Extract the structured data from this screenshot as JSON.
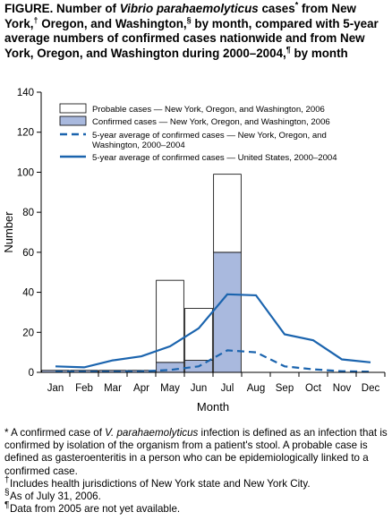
{
  "title": {
    "t1": "FIGURE. Number of ",
    "t2": "Vibrio parahaemolyticus",
    "t3": " cases",
    "m1": "*",
    "t4": " from New York,",
    "m2": "†",
    "t5": " Oregon, and Washington,",
    "m3": "§",
    "t6": " by month, compared with 5-year average numbers of confirmed cases nationwide and from New York, Oregon, and Washington during 2000–2004,",
    "m4": "¶",
    "t7": " by month"
  },
  "chart_data": {
    "type": "bar",
    "categories": [
      "Jan",
      "Feb",
      "Mar",
      "Apr",
      "May",
      "Jun",
      "Jul",
      "Aug",
      "Sep",
      "Oct",
      "Nov",
      "Dec"
    ],
    "xlabel": "Month",
    "ylabel": "Number",
    "ylim": [
      0,
      140
    ],
    "yticks": [
      "0",
      "20",
      "40",
      "60",
      "80",
      "100",
      "120",
      "140"
    ],
    "legend_position": "top",
    "grid": false,
    "colors": {
      "confirmed_fill": "#a9b9de",
      "probable_fill": "#ffffff",
      "line": "#1b64ae",
      "axis": "#000000"
    },
    "series": [
      {
        "name": "Probable cases — New York, Oregon, and Washington, 2006",
        "kind": "bar-stacked",
        "values": [
          0,
          0,
          0,
          0,
          41,
          26,
          39,
          0,
          0,
          0,
          0,
          0
        ]
      },
      {
        "name": "Confirmed cases — New York, Oregon, and Washington, 2006",
        "kind": "bar-stacked",
        "values": [
          1,
          1,
          1,
          1,
          5,
          6,
          60,
          0,
          0,
          0,
          0,
          0
        ]
      },
      {
        "name": "5-year average of confirmed cases — New York, Oregon, and Washington, 2000–2004",
        "kind": "line-dashed",
        "values": [
          0.4,
          0.4,
          0.4,
          0.5,
          1.2,
          3,
          11,
          10,
          3,
          1.5,
          0.6,
          0.3
        ]
      },
      {
        "name": "5-year average of confirmed cases — United States, 2000–2004",
        "kind": "line-solid",
        "values": [
          3,
          2.5,
          6,
          8,
          13,
          22,
          39,
          38.5,
          19,
          16,
          6.5,
          5
        ]
      }
    ]
  },
  "footnotes": [
    {
      "mark": "",
      "pre": "* A confirmed case of ",
      "italic": "V. parahaemolyticus",
      "post": " infection is defined as an infection that is confirmed by isolation of the organism from a patient's stool. A probable case is defined as gasteroenteritis in a person who can be epidemiologically linked to a confirmed case."
    },
    {
      "mark": "†",
      "pre": "Includes health jurisdictions of New York state and New York City.",
      "italic": "",
      "post": ""
    },
    {
      "mark": "§",
      "pre": "As of July 31, 2006.",
      "italic": "",
      "post": ""
    },
    {
      "mark": "¶",
      "pre": "Data from 2005 are not yet available.",
      "italic": "",
      "post": ""
    }
  ]
}
